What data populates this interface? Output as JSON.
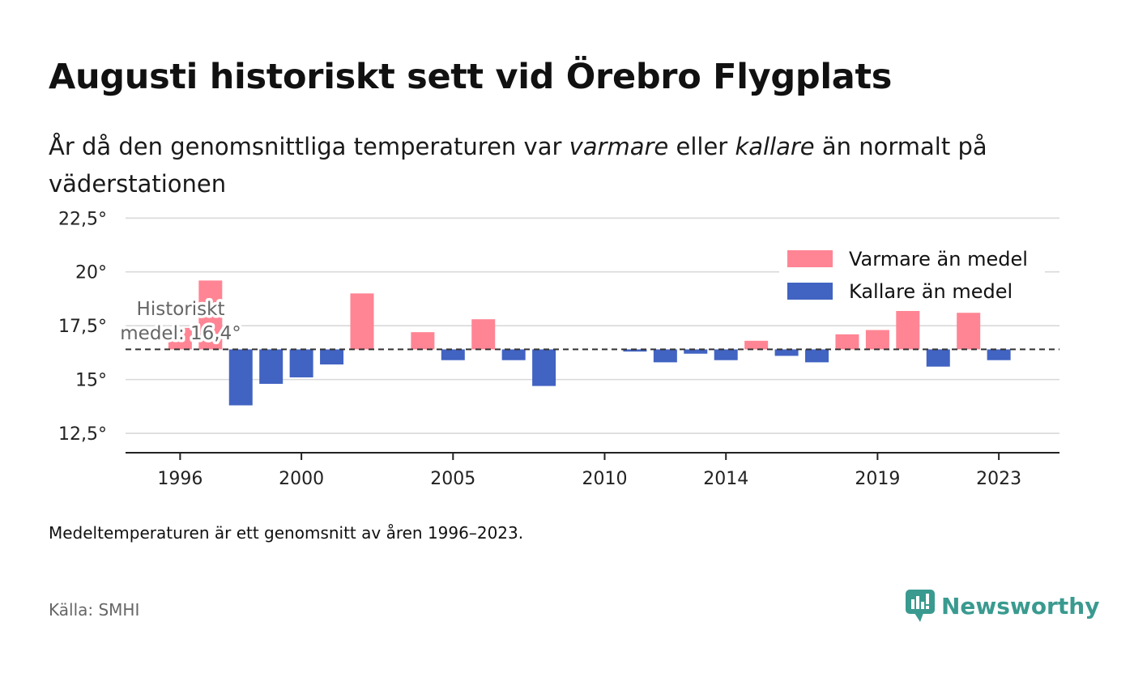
{
  "title": "Augusti historiskt sett vid Örebro Flygplats",
  "subtitle": {
    "part1": "År då den genomsnittliga temperaturen var ",
    "warm_word": "varmare",
    "part2": " eller ",
    "cold_word": "kallare",
    "part3": " än normalt på väderstationen"
  },
  "footnote": "Medeltemperaturen är ett genomsnitt av åren 1996–2023.",
  "source": "Källa: SMHI",
  "brand": {
    "name": "Newsworthy",
    "color": "#3a9a8f"
  },
  "colors": {
    "warm": "#ff8594",
    "cold": "#4163c2",
    "grid": "#d9d9d9",
    "axis": "#222222",
    "mean_line": "#333333",
    "annotation": "#666666"
  },
  "chart_data": {
    "type": "bar",
    "baseline": 16.4,
    "baseline_label_line1": "Historiskt",
    "baseline_label_line2": "medel: 16,4°",
    "ylim": [
      11.6,
      23.0
    ],
    "yticks": [
      12.5,
      15,
      17.5,
      20,
      22.5
    ],
    "ytick_labels": [
      "12,5°",
      "15°",
      "17,5°",
      "20°",
      "22,5°"
    ],
    "xlim": [
      1994.2,
      2025.0
    ],
    "xticks": [
      1996,
      2000,
      2005,
      2010,
      2014,
      2019,
      2023
    ],
    "xtick_labels": [
      "1996",
      "2000",
      "2005",
      "2010",
      "2014",
      "2019",
      "2023"
    ],
    "legend": {
      "position": "top-right",
      "warm_label": "Varmare än medel",
      "cold_label": "Kallare än medel"
    },
    "years": [
      1996,
      1997,
      1998,
      1999,
      2000,
      2001,
      2002,
      2004,
      2005,
      2006,
      2007,
      2008,
      2011,
      2012,
      2013,
      2014,
      2015,
      2016,
      2017,
      2018,
      2019,
      2020,
      2021,
      2022,
      2023
    ],
    "values": [
      17.4,
      19.6,
      13.8,
      14.8,
      15.1,
      15.7,
      19.0,
      17.2,
      15.9,
      17.8,
      15.9,
      14.7,
      16.3,
      15.8,
      16.2,
      15.9,
      16.8,
      16.1,
      15.8,
      17.1,
      17.3,
      18.2,
      15.6,
      18.1,
      15.9
    ]
  }
}
